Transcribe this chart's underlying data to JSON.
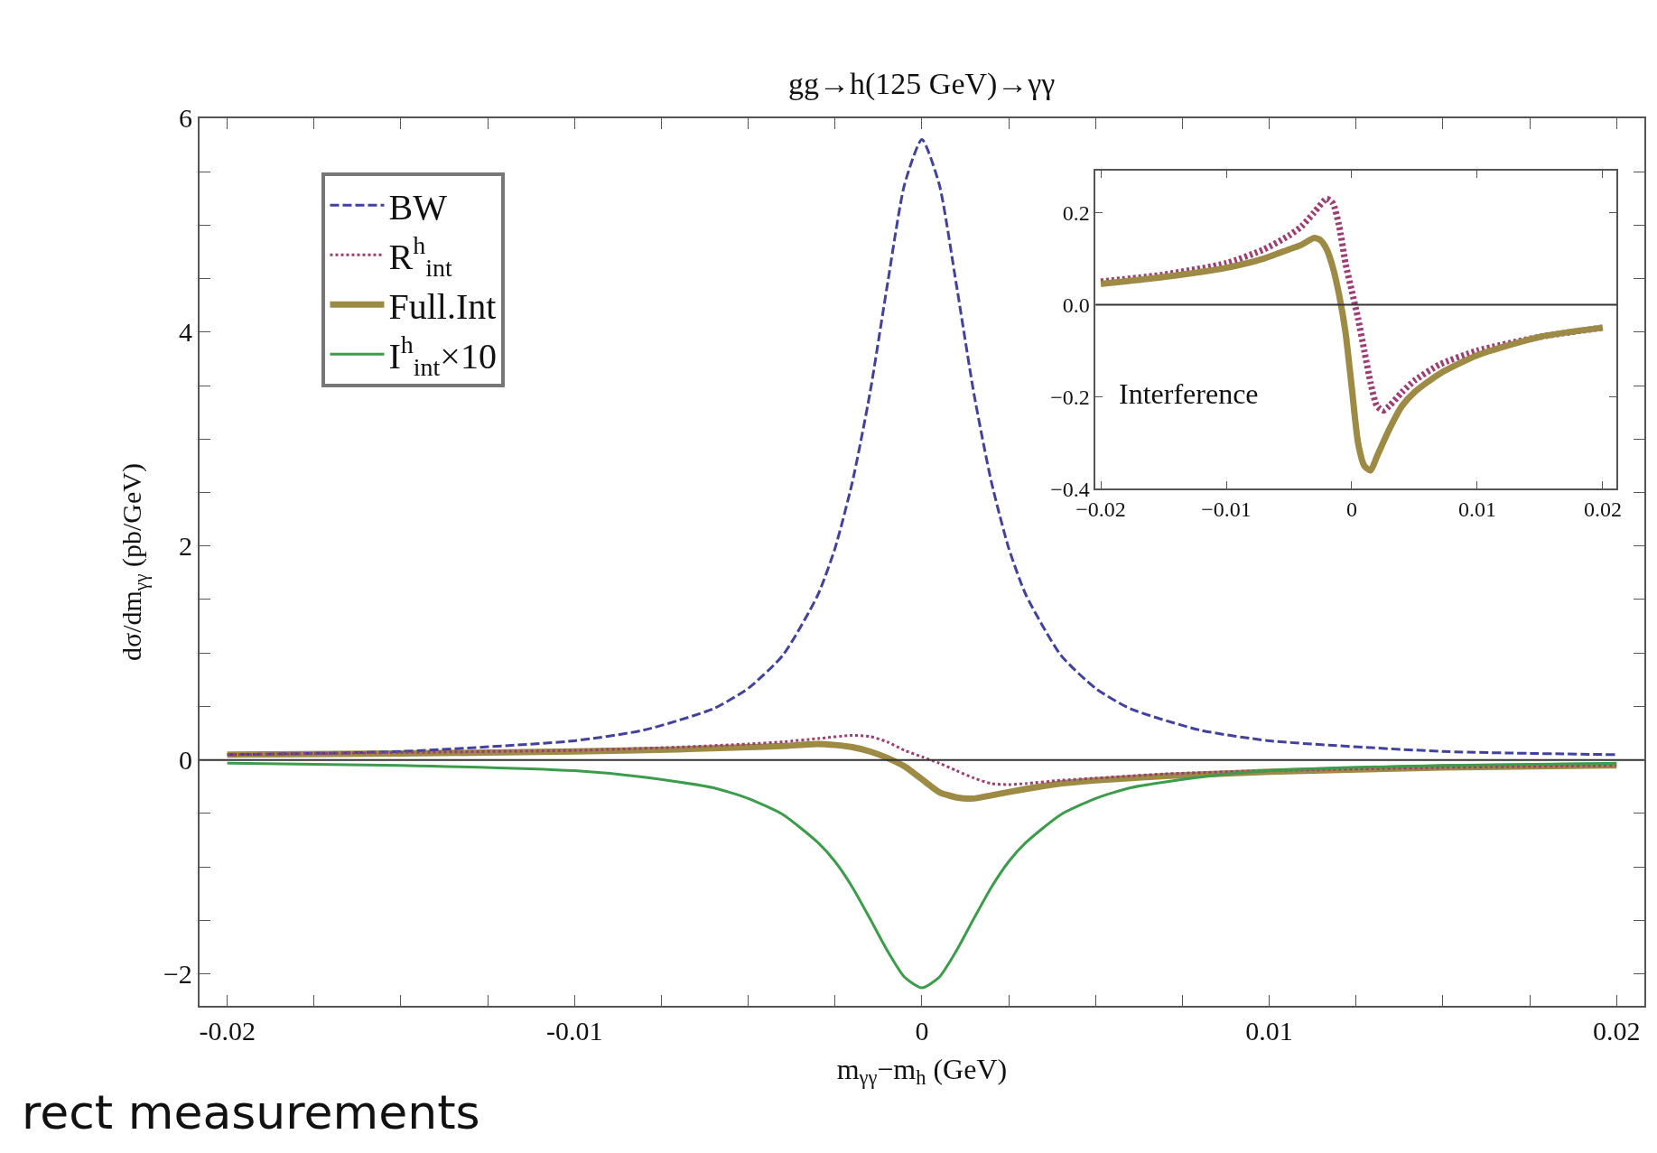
{
  "chart_data": [
    {
      "type": "line",
      "title": "gg→h(125 GeV)→γγ",
      "xlabel": "m$_{γγ}$−m$_{h}$ (GeV)",
      "ylabel": "dσ/dm$_{γγ}$ (pb/GeV)",
      "annotations": [
        "rect measurements"
      ],
      "legend": "top left",
      "xlim": [
        -0.0208,
        0.0208
      ],
      "xticks": [
        -0.02,
        {
          "value": -0.0175,
          "label": null
        },
        {
          "value": -0.015,
          "label": null
        },
        {
          "value": -0.0125,
          "label": null
        },
        -0.01,
        {
          "value": -0.0075,
          "label": null
        },
        {
          "value": -0.005,
          "label": null
        },
        {
          "value": -0.0025,
          "label": null
        },
        0,
        {
          "value": 0.0025,
          "label": null
        },
        {
          "value": 0.005,
          "label": null
        },
        {
          "value": 0.0075,
          "label": null
        },
        0.01,
        {
          "value": 0.0125,
          "label": null
        },
        {
          "value": 0.015,
          "label": null
        },
        {
          "value": 0.0175,
          "label": null
        },
        0.02
      ],
      "ylim": [
        -2.3,
        6
      ],
      "yticks": [
        {
          "value": -2,
          "label": "−2"
        },
        {
          "value": -1.5,
          "label": null
        },
        {
          "value": -1,
          "label": null
        },
        {
          "value": -0.5,
          "label": null
        },
        0,
        {
          "value": 0.5,
          "label": null
        },
        {
          "value": 1,
          "label": null
        },
        {
          "value": 1.5,
          "label": null
        },
        2,
        {
          "value": 2.5,
          "label": null
        },
        {
          "value": 3,
          "label": null
        },
        {
          "value": 3.5,
          "label": null
        },
        4,
        {
          "value": 4.5,
          "label": null
        },
        {
          "value": 5,
          "label": null
        },
        {
          "value": 5.5,
          "label": null
        },
        6
      ],
      "ref_lines": [
        {
          "axis": "y",
          "value": 0,
          "color": "#333333"
        }
      ],
      "x": [
        -0.02,
        -0.015,
        -0.01,
        -0.008,
        -0.006,
        -0.005,
        -0.004,
        -0.003,
        -0.0025,
        -0.002,
        -0.0015,
        -0.001,
        -0.0005,
        0,
        0.0005,
        0.001,
        0.0015,
        0.002,
        0.0025,
        0.003,
        0.004,
        0.005,
        0.006,
        0.008,
        0.01,
        0.015,
        0.02
      ],
      "series": [
        {
          "name": "BW",
          "color": "#42429c",
          "line_style": "dashed",
          "values": [
            0.05,
            0.08,
            0.18,
            0.28,
            0.48,
            0.67,
            0.98,
            1.54,
            1.98,
            2.6,
            3.42,
            4.43,
            5.38,
            5.8,
            5.38,
            4.43,
            3.42,
            2.6,
            1.98,
            1.54,
            0.98,
            0.67,
            0.48,
            0.28,
            0.18,
            0.08,
            0.05
          ]
        },
        {
          "name": "R$^{h}$$_{int}$",
          "color": "#9c3e72",
          "line_style": "dotted",
          "x": [
            -0.02,
            -0.015,
            -0.01,
            -0.007,
            -0.005,
            -0.004,
            -0.003,
            -0.002,
            -0.0015,
            -0.001,
            -0.0005,
            0,
            0.0005,
            0.001,
            0.0015,
            0.002,
            0.0025,
            0.003,
            0.004,
            0.005,
            0.007,
            0.01,
            0.015,
            0.02
          ],
          "values": [
            0.05,
            0.07,
            0.09,
            0.12,
            0.15,
            0.17,
            0.2,
            0.23,
            0.22,
            0.17,
            0.09,
            0.03,
            -0.03,
            -0.1,
            -0.17,
            -0.22,
            -0.23,
            -0.22,
            -0.19,
            -0.17,
            -0.13,
            -0.1,
            -0.07,
            -0.05
          ]
        },
        {
          "name": "Full.Int",
          "color": "#9c8a45",
          "line_style": "solid",
          "x": [
            -0.02,
            -0.015,
            -0.01,
            -0.007,
            -0.005,
            -0.004,
            -0.003,
            -0.0025,
            -0.002,
            -0.0015,
            -0.001,
            -0.0005,
            0,
            0.0005,
            0.001,
            0.0015,
            0.002,
            0.003,
            0.004,
            0.005,
            0.007,
            0.01,
            0.015,
            0.02
          ],
          "values": [
            0.05,
            0.06,
            0.08,
            0.1,
            0.12,
            0.13,
            0.15,
            0.14,
            0.12,
            0.08,
            0.02,
            -0.06,
            -0.18,
            -0.3,
            -0.35,
            -0.36,
            -0.33,
            -0.27,
            -0.22,
            -0.19,
            -0.15,
            -0.11,
            -0.07,
            -0.05
          ]
        },
        {
          "name": "I$^{h}$$_{int}$×10",
          "color": "#3c9c4c",
          "line_style": "solid",
          "values": [
            -0.03,
            -0.05,
            -0.1,
            -0.16,
            -0.26,
            -0.36,
            -0.51,
            -0.77,
            -0.95,
            -1.19,
            -1.48,
            -1.78,
            -2.03,
            -2.13,
            -2.03,
            -1.78,
            -1.48,
            -1.19,
            -0.95,
            -0.77,
            -0.51,
            -0.36,
            -0.26,
            -0.16,
            -0.1,
            -0.05,
            -0.03
          ]
        }
      ]
    },
    {
      "type": "line",
      "annotations": [
        "Interference"
      ],
      "xlim": [
        -0.0204,
        0.0211
      ],
      "xticks": [
        {
          "value": -0.02,
          "label": "−0.02"
        },
        {
          "value": -0.01,
          "label": "−0.01"
        },
        0,
        0.01,
        0.02
      ],
      "ylim": [
        -0.4,
        0.29
      ],
      "yticks": [
        {
          "value": -0.4,
          "label": "−0.4"
        },
        {
          "value": -0.2,
          "label": "−0.2"
        },
        {
          "value": 0,
          "label": "0.0"
        },
        0.2
      ],
      "ref_lines": [
        {
          "axis": "y",
          "value": 0,
          "color": "#333333"
        }
      ],
      "x": [
        -0.02,
        -0.015,
        -0.01,
        -0.007,
        -0.005,
        -0.004,
        -0.003,
        -0.002,
        -0.0015,
        -0.001,
        -0.0005,
        0,
        0.0005,
        0.001,
        0.0015,
        0.002,
        0.0025,
        0.003,
        0.004,
        0.005,
        0.007,
        0.01,
        0.015,
        0.02
      ],
      "series": [
        {
          "color": "#9c3e72",
          "line_style": "dotted",
          "values": [
            0.05,
            0.065,
            0.09,
            0.12,
            0.15,
            0.17,
            0.2,
            0.23,
            0.22,
            0.17,
            0.09,
            0.03,
            -0.03,
            -0.1,
            -0.17,
            -0.22,
            -0.23,
            -0.22,
            -0.19,
            -0.165,
            -0.13,
            -0.1,
            -0.07,
            -0.05
          ]
        },
        {
          "color": "#9c8a45",
          "line_style": "solid",
          "x": [
            -0.02,
            -0.015,
            -0.01,
            -0.007,
            -0.005,
            -0.004,
            -0.003,
            -0.0025,
            -0.002,
            -0.0015,
            -0.001,
            -0.0005,
            0,
            0.0005,
            0.001,
            0.0015,
            0.002,
            0.003,
            0.004,
            0.005,
            0.007,
            0.01,
            0.015,
            0.02
          ],
          "values": [
            0.045,
            0.06,
            0.08,
            0.1,
            0.12,
            0.13,
            0.145,
            0.14,
            0.12,
            0.08,
            0.02,
            -0.06,
            -0.18,
            -0.3,
            -0.35,
            -0.36,
            -0.33,
            -0.27,
            -0.22,
            -0.19,
            -0.15,
            -0.11,
            -0.07,
            -0.05
          ]
        }
      ]
    }
  ]
}
